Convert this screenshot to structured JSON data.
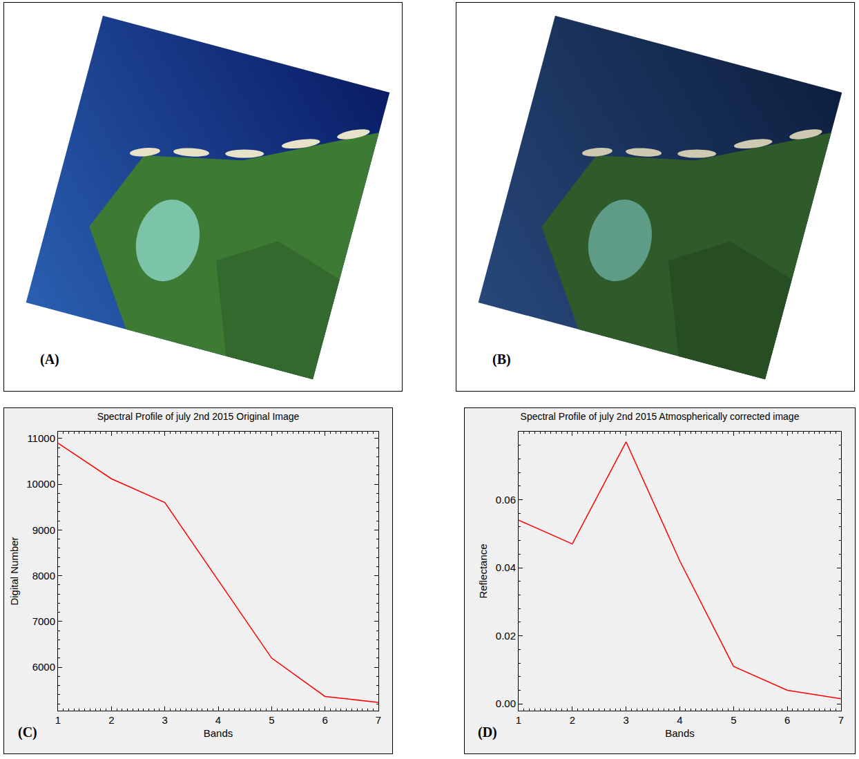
{
  "images": [
    {
      "label": "(A)"
    },
    {
      "label": "(B)"
    }
  ],
  "chart_data": [
    {
      "type": "line",
      "panel_label": "(C)",
      "title": "Spectral Profile of july 2nd 2015 Original Image",
      "xlabel": "Bands",
      "ylabel": "Digital Number",
      "x": [
        1,
        2,
        3,
        4,
        5,
        6,
        7
      ],
      "values": [
        10900,
        10120,
        9600,
        7900,
        6200,
        5360,
        5230
      ],
      "color": "#ff0000",
      "xlim": [
        1,
        7
      ],
      "xticks": [
        1,
        2,
        3,
        4,
        5,
        6,
        7
      ],
      "ylim": [
        5050,
        11150
      ],
      "yticks": [
        6000,
        7000,
        8000,
        9000,
        10000,
        11000
      ],
      "grid": false
    },
    {
      "type": "line",
      "panel_label": "(D)",
      "title": "Spectral Profile of july 2nd 2015 Atmospherically corrected image",
      "xlabel": "Bands",
      "ylabel": "Reflectance",
      "x": [
        1,
        2,
        3,
        4,
        5,
        6,
        7
      ],
      "values": [
        0.054,
        0.047,
        0.077,
        0.042,
        0.011,
        0.004,
        0.0015
      ],
      "color": "#ff0000",
      "xlim": [
        1,
        7
      ],
      "xticks": [
        1,
        2,
        3,
        4,
        5,
        6,
        7
      ],
      "ylim": [
        -0.002,
        0.08
      ],
      "yticks": [
        {
          "value": 0,
          "label": "0.00"
        },
        0.02,
        0.04,
        0.06
      ],
      "grid": false
    }
  ]
}
